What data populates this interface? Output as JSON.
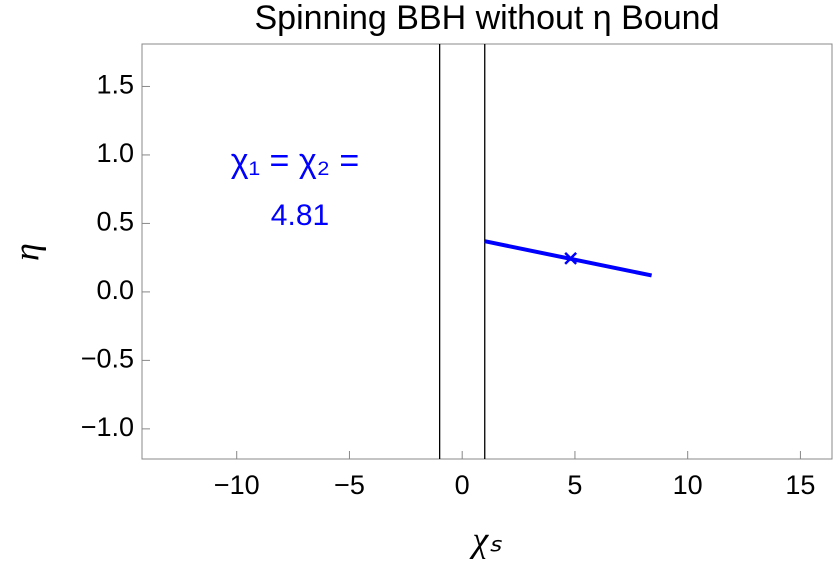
{
  "chart_data": {
    "type": "line",
    "title": "Spinning BBH without η Bound",
    "x_label": "χₛ",
    "y_label": "η",
    "xlim": [
      -14.2,
      16.4
    ],
    "ylim": [
      -1.22,
      1.81
    ],
    "xticks": [
      {
        "value": -10,
        "label": "−10"
      },
      {
        "value": -5,
        "label": "−5"
      },
      0,
      5,
      10,
      15
    ],
    "yticks": [
      {
        "value": -1,
        "label": "−1.0"
      },
      {
        "value": -0.5,
        "label": "−0.5"
      },
      {
        "value": 0,
        "label": "0.0"
      },
      0.5,
      {
        "value": 1,
        "label": "1.0"
      },
      1.5
    ],
    "vlines": [
      -1,
      1
    ],
    "series": [
      {
        "color": "#0000ff",
        "x": [
          1,
          8.4
        ],
        "values": [
          0.37,
          0.12
        ]
      }
    ],
    "marker": {
      "x": 4.81,
      "y": 0.245,
      "label": "4.81",
      "color": "#0000ff"
    },
    "annotation": "χ₁ = χ₂ ="
  }
}
